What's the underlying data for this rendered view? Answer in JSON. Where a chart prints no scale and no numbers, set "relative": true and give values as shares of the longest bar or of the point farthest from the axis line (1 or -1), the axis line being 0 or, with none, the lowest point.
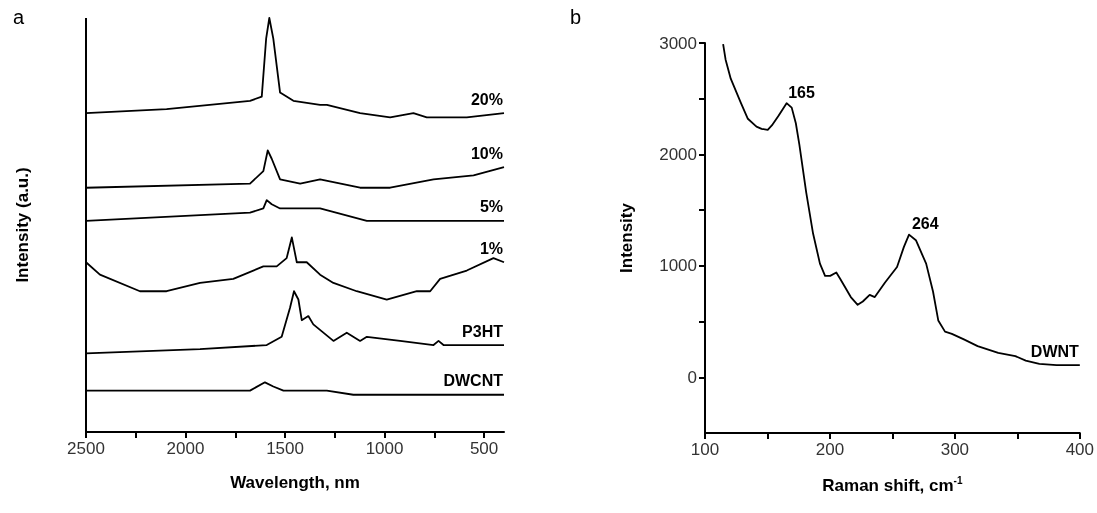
{
  "chart_data": [
    {
      "type": "line",
      "title": "a",
      "xlabel": "Wavelength, nm",
      "ylabel": "Intensity (a.u.)",
      "relative": true,
      "marker": "none",
      "xlim": [
        2500,
        400
      ],
      "xticks": [
        2500,
        {
          "value": 2250,
          "label": null
        },
        2000,
        {
          "value": 1750,
          "label": null
        },
        1500,
        {
          "value": 1250,
          "label": null
        },
        1000,
        {
          "value": 750,
          "label": null
        },
        500
      ],
      "series": [
        {
          "name": "20%",
          "color": "#000000",
          "x": [
            2500,
            2095,
            1676,
            1617,
            1595,
            1579,
            1559,
            1525,
            1458,
            1324,
            1290,
            1123,
            972,
            855,
            788,
            587,
            400
          ],
          "values": [
            0.77,
            0.78,
            0.8,
            0.81,
            0.95,
            1.0,
            0.95,
            0.82,
            0.8,
            0.79,
            0.79,
            0.77,
            0.76,
            0.77,
            0.76,
            0.76,
            0.77
          ]
        },
        {
          "name": "10%",
          "color": "#000000",
          "x": [
            2500,
            1676,
            1609,
            1587,
            1567,
            1525,
            1424,
            1324,
            1123,
            972,
            754,
            553,
            400
          ],
          "values": [
            0.59,
            0.6,
            0.63,
            0.68,
            0.66,
            0.61,
            0.6,
            0.61,
            0.59,
            0.59,
            0.61,
            0.62,
            0.64
          ]
        },
        {
          "name": "5%",
          "color": "#000000",
          "x": [
            2500,
            1676,
            1609,
            1592,
            1567,
            1525,
            1324,
            1089,
            754,
            400
          ],
          "values": [
            0.51,
            0.53,
            0.54,
            0.56,
            0.55,
            0.54,
            0.54,
            0.51,
            0.51,
            0.51
          ]
        },
        {
          "name": "1%",
          "color": "#000000",
          "x": [
            2500,
            2430,
            2229,
            2095,
            1927,
            1760,
            1609,
            1542,
            1492,
            1466,
            1441,
            1391,
            1324,
            1257,
            1140,
            989,
            838,
            771,
            721,
            587,
            453,
            400
          ],
          "values": [
            0.41,
            0.38,
            0.34,
            0.34,
            0.36,
            0.37,
            0.4,
            0.4,
            0.42,
            0.47,
            0.41,
            0.41,
            0.38,
            0.36,
            0.34,
            0.32,
            0.34,
            0.34,
            0.37,
            0.39,
            0.42,
            0.41
          ]
        },
        {
          "name": "P3HT",
          "color": "#000000",
          "x": [
            2500,
            1927,
            1592,
            1517,
            1475,
            1455,
            1433,
            1416,
            1383,
            1358,
            1257,
            1190,
            1123,
            1089,
            922,
            754,
            729,
            704,
            400
          ],
          "values": [
            0.19,
            0.2,
            0.21,
            0.23,
            0.3,
            0.34,
            0.32,
            0.27,
            0.28,
            0.26,
            0.22,
            0.24,
            0.22,
            0.23,
            0.22,
            0.21,
            0.22,
            0.21,
            0.21
          ]
        },
        {
          "name": "DWCNT",
          "color": "#000000",
          "x": [
            2500,
            1676,
            1601,
            1559,
            1508,
            1324,
            1290,
            1157,
            400
          ],
          "values": [
            0.1,
            0.1,
            0.12,
            0.11,
            0.1,
            0.1,
            0.1,
            0.09,
            0.09
          ]
        }
      ]
    },
    {
      "type": "line",
      "title": "b",
      "xlabel": "Raman shift, cm$^{-1}$",
      "ylabel": "Intensity",
      "marker": "none",
      "xlim": [
        100,
        400
      ],
      "ylim": [
        -500,
        3000
      ],
      "xticks": [
        100,
        {
          "value": 150,
          "label": null
        },
        200,
        {
          "value": 250,
          "label": null
        },
        300,
        {
          "value": 350,
          "label": null
        },
        400
      ],
      "yticks": [
        0,
        {
          "value": 500,
          "label": null
        },
        1000,
        {
          "value": 1500,
          "label": null
        },
        2000,
        {
          "value": 2500,
          "label": null
        },
        3000
      ],
      "x": [
        114.5,
        116.5,
        120.6,
        128.8,
        134.3,
        141.2,
        145.3,
        150.2,
        153.5,
        159,
        165.3,
        169.4,
        172.7,
        175.5,
        181,
        186.5,
        192,
        196.1,
        200.2,
        205.1,
        208.4,
        216.7,
        222.2,
        226.3,
        231.8,
        235.9,
        244.1,
        253.7,
        259.2,
        263.3,
        268.8,
        277,
        282.5,
        286.7,
        292.1,
        297.6,
        307.2,
        318.2,
        334.7,
        348.4,
        356.7,
        367.6,
        381.4,
        395.1,
        400
      ],
      "series": [
        {
          "name": "DWNT",
          "color": "#000000",
          "values": [
            2990,
            2850,
            2680,
            2460,
            2320,
            2250,
            2230,
            2220,
            2260,
            2350,
            2460,
            2420,
            2280,
            2090,
            1660,
            1290,
            1020,
            910,
            910,
            940,
            880,
            720,
            650,
            680,
            740,
            720,
            850,
            990,
            1170,
            1280,
            1230,
            1020,
            770,
            510,
            410,
            390,
            340,
            280,
            220,
            190,
            150,
            120,
            110,
            110,
            110
          ]
        }
      ],
      "annotations": [
        {
          "text": "165",
          "x": 165,
          "y": 2460
        },
        {
          "text": "264",
          "x": 264,
          "y": 1280
        }
      ]
    }
  ]
}
